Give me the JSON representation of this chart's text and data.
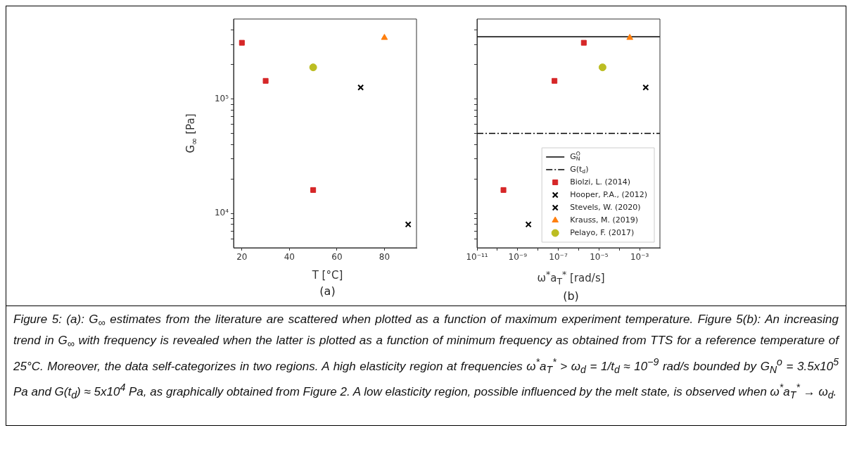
{
  "chart_data": [
    {
      "type": "scatter",
      "xlabel": "T [°C]",
      "ylabel": "G$_{∞}$ [Pa]",
      "annotations": [
        "(a)"
      ],
      "log": "y",
      "grid": false,
      "legend": false,
      "xlim": [
        16.5,
        93.5
      ],
      "xticks": [
        20,
        40,
        60,
        80
      ],
      "ylim": [
        5000,
        500000
      ],
      "yticks": [
        {
          "value": 6000,
          "label": null
        },
        {
          "value": 7000,
          "label": null
        },
        {
          "value": 8000,
          "label": null
        },
        {
          "value": 9000,
          "label": null
        },
        {
          "value": 10000,
          "label": "10⁴"
        },
        {
          "value": 20000,
          "label": null
        },
        {
          "value": 30000,
          "label": null
        },
        {
          "value": 40000,
          "label": null
        },
        {
          "value": 50000,
          "label": null
        },
        {
          "value": 60000,
          "label": null
        },
        {
          "value": 70000,
          "label": null
        },
        {
          "value": 80000,
          "label": null
        },
        {
          "value": 90000,
          "label": null
        },
        {
          "value": 100000,
          "label": "10⁵"
        },
        {
          "value": 200000,
          "label": null
        },
        {
          "value": 300000,
          "label": null
        },
        {
          "value": 400000,
          "label": null
        }
      ],
      "series": [
        {
          "color": "#d62728",
          "marker": "square",
          "x": [
            20,
            30,
            50
          ],
          "values": [
            310000,
            144000,
            16000
          ]
        },
        {
          "color": "#000000",
          "marker": "cross",
          "x": [
            70
          ],
          "values": [
            126000
          ]
        },
        {
          "color": "#000000",
          "marker": "cross",
          "x": [
            90
          ],
          "values": [
            8000
          ]
        },
        {
          "color": "#ff7f0e",
          "marker": "triangle",
          "x": [
            80
          ],
          "values": [
            343000
          ]
        },
        {
          "color": "#bcbd22",
          "marker": "circle",
          "x": [
            50
          ],
          "values": [
            189000
          ]
        }
      ]
    },
    {
      "type": "scatter",
      "xlabel": "ω$^{*}$a$_{T}$$^{*}$ [rad/s]",
      "annotations": [
        "(b)"
      ],
      "log": "xy",
      "grid": false,
      "legend": "bottom right",
      "tick_labels": "x",
      "xlim": [
        1e-11,
        0.01
      ],
      "xticks": [
        {
          "value": 1e-11,
          "label": "10⁻¹¹"
        },
        {
          "value": 1e-10,
          "label": null
        },
        {
          "value": 1e-09,
          "label": "10⁻⁹"
        },
        {
          "value": 1e-08,
          "label": null
        },
        {
          "value": 1e-07,
          "label": "10⁻⁷"
        },
        {
          "value": 1e-06,
          "label": null
        },
        {
          "value": 1e-05,
          "label": "10⁻⁵"
        },
        {
          "value": 0.0001,
          "label": null
        },
        {
          "value": 0.001,
          "label": "10⁻³"
        }
      ],
      "ylim": [
        5000,
        500000
      ],
      "yticks": [
        {
          "value": 6000,
          "label": null
        },
        {
          "value": 7000,
          "label": null
        },
        {
          "value": 8000,
          "label": null
        },
        {
          "value": 9000,
          "label": null
        },
        {
          "value": 10000,
          "label": null
        },
        {
          "value": 20000,
          "label": null
        },
        {
          "value": 30000,
          "label": null
        },
        {
          "value": 40000,
          "label": null
        },
        {
          "value": 50000,
          "label": null
        },
        {
          "value": 60000,
          "label": null
        },
        {
          "value": 70000,
          "label": null
        },
        {
          "value": 80000,
          "label": null
        },
        {
          "value": 90000,
          "label": null
        },
        {
          "value": 100000,
          "label": null
        },
        {
          "value": 200000,
          "label": null
        },
        {
          "value": 300000,
          "label": null
        },
        {
          "value": 400000,
          "label": null
        }
      ],
      "ref_lines": [
        {
          "axis": "y",
          "value": 350000,
          "label": "G$_{N}$$^{O}$",
          "color": "#000000",
          "line_style": "solid"
        },
        {
          "axis": "y",
          "value": 50000,
          "label": "G(t$_{d}$)",
          "color": "#000000",
          "line_style": "dashdot"
        }
      ],
      "series": [
        {
          "name": "Biolzi, L. (2014)",
          "color": "#d62728",
          "marker": "square",
          "x": [
            1.8e-06,
            6.5e-08,
            2e-10
          ],
          "values": [
            310000,
            144000,
            16000
          ]
        },
        {
          "name": "Hooper, P.A., (2012)",
          "color": "#000000",
          "marker": "cross",
          "x": [
            0.002
          ],
          "values": [
            126000
          ]
        },
        {
          "name": "Stevels, W. (2020)",
          "color": "#000000",
          "marker": "cross",
          "x": [
            3.4e-09
          ],
          "values": [
            8000
          ]
        },
        {
          "name": "Krauss, M. (2019)",
          "color": "#ff7f0e",
          "marker": "triangle",
          "x": [
            0.00033
          ],
          "values": [
            343000
          ]
        },
        {
          "name": "Pelayo, F. (2017)",
          "color": "#bcbd22",
          "marker": "circle",
          "x": [
            1.5e-05
          ],
          "values": [
            189000
          ]
        }
      ]
    },
    {
      "type": "other",
      "annotations": [
        "Figure 5: (a): G$_{∞}$ estimates from the literature are scattered when plotted as a function of maximum experiment temperature. Figure 5(b): An increasing trend in G$_{∞}$ with frequency is revealed when the latter is plotted as a function of minimum frequency as obtained from TTS for a reference temperature of 25°C. Moreover, the data self-categorizes in two regions. A high elasticity region at frequencies ω$^{*}$a$_{T}$$^{*}$ > ω$_{d}$ = 1/t$_{d}$ ≈ 10$^{−9}$ rad/s bounded by G$_{N}$$^{o}$ = 3.5x10$^{5}$ Pa and G(t$_{d}$) ≈ 5x10$^{4}$ Pa, as graphically obtained from Figure 2. A low elasticity region, possible influenced by the melt state, is observed when ω$^{*}$a$_{T}$$^{*}$ → ω$_{d}$."
      ]
    }
  ]
}
